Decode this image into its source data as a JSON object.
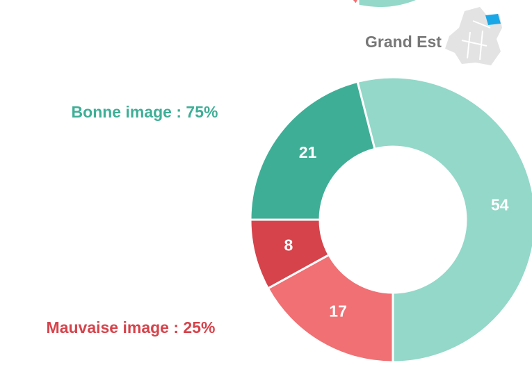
{
  "chart_data": {
    "type": "donut",
    "title": "Grand Est",
    "values": [
      54,
      17,
      8,
      21
    ],
    "colors": [
      "#93d8c9",
      "#f07074",
      "#d6434b",
      "#3fae96"
    ],
    "annotations": [
      {
        "text": "Bonne image : 75%",
        "color": "#3fae96"
      },
      {
        "text": "Mauvaise image : 25%",
        "color": "#d6434b"
      }
    ]
  }
}
